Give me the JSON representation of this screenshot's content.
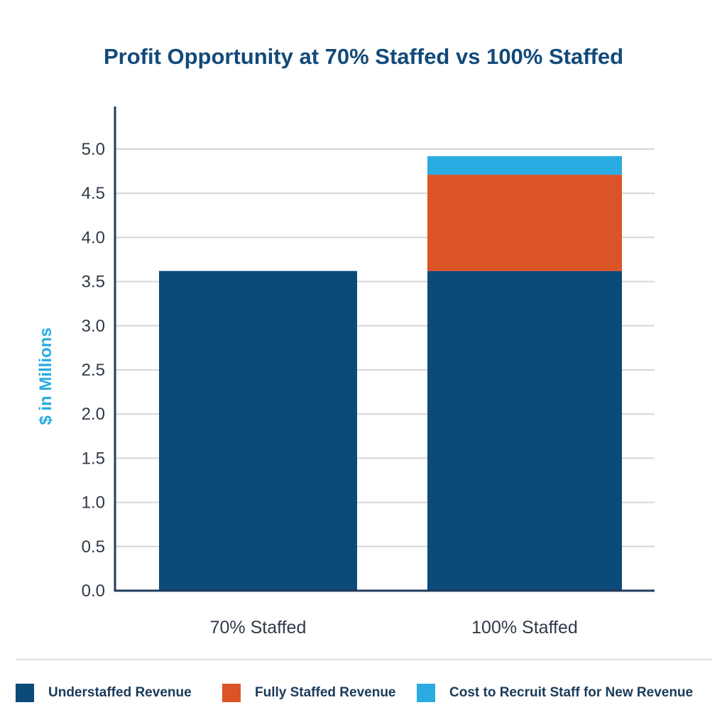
{
  "chart_data": {
    "type": "bar",
    "stacked": true,
    "title": "Profit Opportunity at 70% Staffed vs 100% Staffed",
    "xlabel": "",
    "ylabel": "$ in Millions",
    "ylim": [
      0,
      5.5
    ],
    "yticks": [
      "0.0",
      "0.5",
      "1.0",
      "1.5",
      "2.0",
      "2.5",
      "3.0",
      "3.5",
      "4.0",
      "4.5",
      "5.0"
    ],
    "grid": true,
    "legend_position": "bottom",
    "categories": [
      "70% Staffed",
      "100% Staffed"
    ],
    "series": [
      {
        "name": "Understaffed Revenue",
        "color": "#0c4a7a",
        "values": [
          3.62,
          3.62
        ]
      },
      {
        "name": "Fully Staffed Revenue",
        "color": "#db5428",
        "values": [
          0,
          1.09
        ]
      },
      {
        "name": "Cost to Recruit Staff for New Revenue",
        "color": "#2aace2",
        "values": [
          0,
          0.21
        ]
      }
    ]
  }
}
